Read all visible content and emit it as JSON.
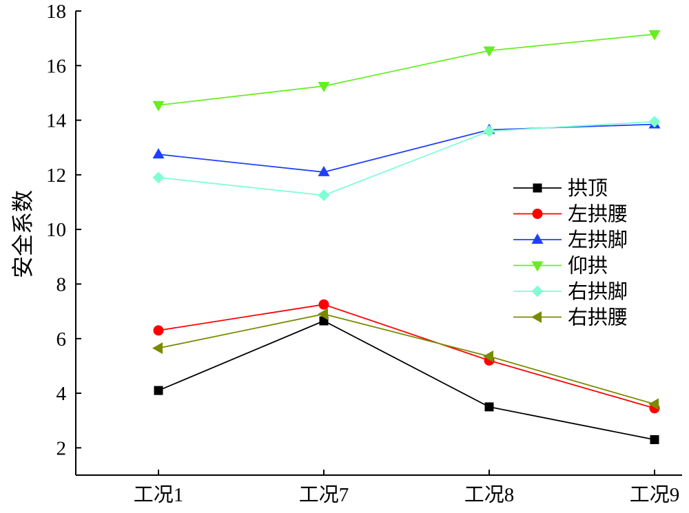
{
  "chart_data": {
    "type": "line",
    "title": "",
    "xlabel": "",
    "ylabel": "安全系数",
    "categories": [
      "工况1",
      "工况7",
      "工况8",
      "工况9"
    ],
    "ylim": [
      1,
      18
    ],
    "yticks": [
      2,
      4,
      6,
      8,
      10,
      12,
      14,
      16,
      18
    ],
    "grid": false,
    "legend_position": "right",
    "series": [
      {
        "name": "拱顶",
        "color": "#000000",
        "marker": "square",
        "values": [
          4.1,
          6.65,
          3.5,
          2.3
        ]
      },
      {
        "name": "左拱腰",
        "color": "#ff0000",
        "marker": "circle",
        "values": [
          6.3,
          7.25,
          5.2,
          3.45
        ]
      },
      {
        "name": "左拱脚",
        "color": "#1f3fff",
        "marker": "triangle-up",
        "values": [
          12.75,
          12.1,
          13.65,
          13.85
        ]
      },
      {
        "name": "仰拱",
        "color": "#66ee22",
        "marker": "triangle-down",
        "values": [
          14.55,
          15.25,
          16.55,
          17.15
        ]
      },
      {
        "name": "右拱脚",
        "color": "#7fffd4",
        "marker": "diamond",
        "values": [
          11.9,
          11.25,
          13.6,
          13.95
        ]
      },
      {
        "name": "右拱腰",
        "color": "#7b8a00",
        "marker": "triangle-left",
        "values": [
          5.65,
          6.9,
          5.35,
          3.6
        ]
      }
    ]
  }
}
